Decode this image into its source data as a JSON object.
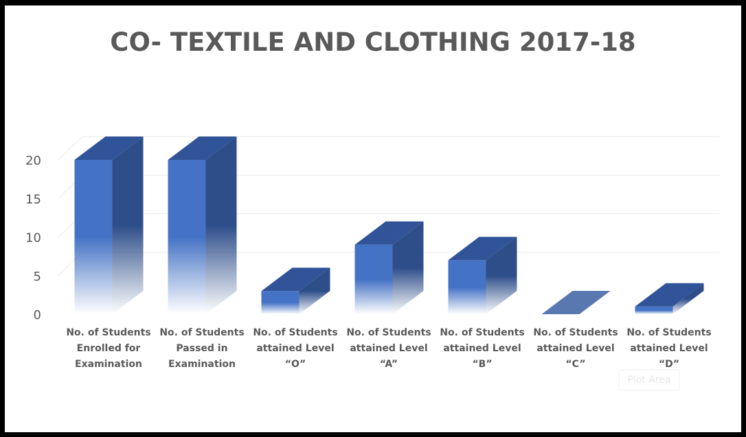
{
  "chart_data": {
    "type": "bar",
    "title": "CO- TEXTILE AND CLOTHING 2017-18",
    "categories": [
      [
        "No. of Students",
        "Enrolled for",
        "Examination"
      ],
      [
        "No. of Students",
        "Passed in",
        "Examination"
      ],
      [
        "No. of Students",
        "attained Level",
        "“O”"
      ],
      [
        "No. of Students",
        "attained Level",
        "“A”"
      ],
      [
        "No. of Students",
        "attained Level",
        "“B”"
      ],
      [
        "No. of Students",
        "attained Level",
        "“C”"
      ],
      [
        "No. of Students",
        "attained Level",
        "“D”"
      ]
    ],
    "values": [
      20,
      20,
      3,
      9,
      7,
      0,
      1
    ],
    "ylim": [
      0,
      20
    ],
    "yticks": [
      "0",
      "5",
      "10",
      "15",
      "20"
    ],
    "grid": true,
    "colors": {
      "front": "#4472c4",
      "side": "#2e4e8a",
      "top": "#305497",
      "grid": "#eaeaea",
      "flat_top": "#5a78b0"
    }
  },
  "tooltip": "Plot Area"
}
